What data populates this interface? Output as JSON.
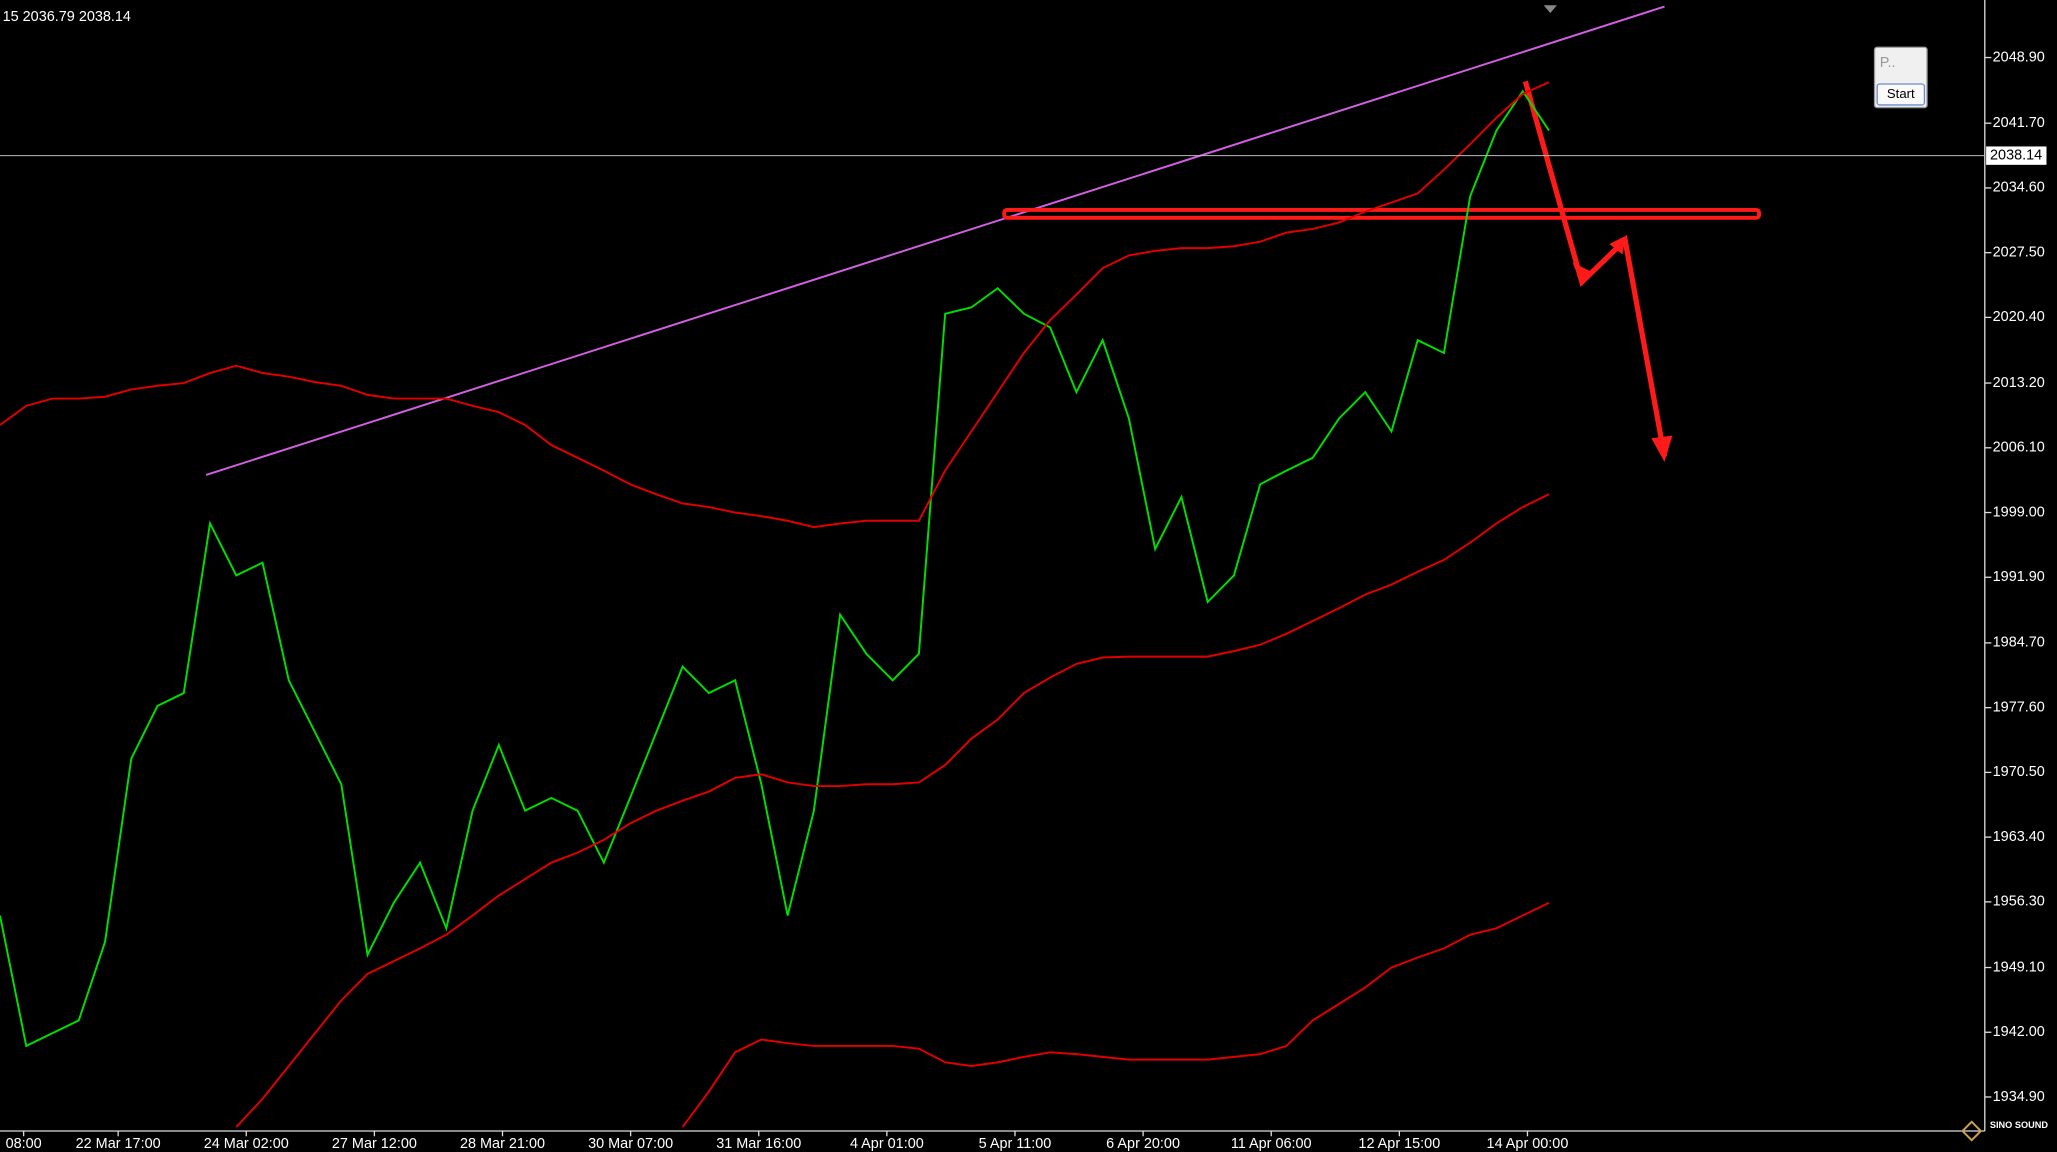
{
  "chart_data": {
    "type": "line",
    "header": "15 2036.79 2038.14",
    "current_price": 2038.14,
    "button_p": "P..",
    "button_start": "Start",
    "logo": "SINO SOUND",
    "x_labels": [
      "08:00",
      "22 Mar 17:00",
      "24 Mar 02:00",
      "27 Mar 12:00",
      "28 Mar 21:00",
      "30 Mar 07:00",
      "31 Mar 16:00",
      "4 Apr 01:00",
      "5 Apr 11:00",
      "6 Apr 20:00",
      "11 Apr 06:00",
      "12 Apr 15:00",
      "14 Apr 00:00"
    ],
    "ylim": [
      1931.17,
      2055.21
    ],
    "yticks": [
      {
        "value": 2048.9,
        "label": "2048.90"
      },
      {
        "value": 2041.7,
        "label": "2041.70"
      },
      {
        "value": 2034.6,
        "label": "2034.60"
      },
      {
        "value": 2027.5,
        "label": "2027.50"
      },
      {
        "value": 2020.4,
        "label": "2020.40"
      },
      {
        "value": 2013.2,
        "label": "2013.20"
      },
      {
        "value": 2006.1,
        "label": "2006.10"
      },
      {
        "value": 1999.0,
        "label": "1999.00"
      },
      {
        "value": 1991.9,
        "label": "1991.90"
      },
      {
        "value": 1984.7,
        "label": "1984.70"
      },
      {
        "value": 1977.6,
        "label": "1977.60"
      },
      {
        "value": 1970.5,
        "label": "1970.50"
      },
      {
        "value": 1963.4,
        "label": "1963.40"
      },
      {
        "value": 1956.3,
        "label": "1956.30"
      },
      {
        "value": 1949.1,
        "label": "1949.10"
      },
      {
        "value": 1942.0,
        "label": "1942.00"
      },
      {
        "value": 1934.9,
        "label": "1934.90"
      }
    ],
    "series": [
      {
        "color": "#00dd00",
        "values": [
          1954.8,
          1940.5,
          1941.9,
          1943.3,
          1951.9,
          1972.0,
          1977.8,
          1979.2,
          1997.8,
          1992.1,
          1993.5,
          1980.6,
          1974.9,
          1969.2,
          1950.5,
          1956.2,
          1960.6,
          1953.4,
          1966.3,
          1973.5,
          1966.3,
          1967.7,
          1966.3,
          1960.6,
          1967.7,
          1974.9,
          1982.1,
          1979.2,
          1980.6,
          1969.2,
          1954.8,
          1966.3,
          1987.8,
          1983.5,
          1980.6,
          1983.5,
          2020.8,
          2021.5,
          2023.6,
          2020.8,
          2019.3,
          2012.2,
          2017.9,
          2009.3,
          1995.0,
          2000.7,
          1989.2,
          1992.1,
          2002.1,
          2003.6,
          2005.0,
          2009.3,
          2012.2,
          2007.9,
          2017.9,
          2016.5,
          2033.7,
          2040.9,
          2045.2,
          2040.9
        ]
      },
      {
        "color": "#e00000",
        "values": [
          2008.6,
          2010.7,
          2011.5,
          2011.5,
          2011.7,
          2012.5,
          2012.9,
          2013.2,
          2014.3,
          2015.1,
          2014.3,
          2013.9,
          2013.3,
          2012.9,
          2011.9,
          2011.5,
          2011.5,
          2011.5,
          2010.7,
          2010.0,
          2008.6,
          2006.4,
          2005.0,
          2003.6,
          2002.1,
          2001.0,
          2000.0,
          1999.6,
          1999.0,
          1998.6,
          1998.1,
          1997.4,
          1997.8,
          1998.1,
          1998.1,
          1998.1,
          2003.6,
          2007.9,
          2012.2,
          2016.5,
          2020.1,
          2022.9,
          2025.8,
          2027.2,
          2027.7,
          2028.0,
          2028.0,
          2028.2,
          2028.7,
          2029.7,
          2030.1,
          2030.8,
          2032.0,
          2033.0,
          2034.0,
          2036.6,
          2039.4,
          2042.3,
          2044.9,
          2046.2
        ]
      },
      {
        "color": "#e00000",
        "values": [
          null,
          null,
          null,
          null,
          null,
          null,
          null,
          null,
          null,
          1931.6,
          1934.7,
          1938.3,
          1941.9,
          1945.5,
          1948.4,
          1949.8,
          1951.2,
          1952.7,
          1954.8,
          1957.0,
          1958.8,
          1960.6,
          1961.7,
          1963.1,
          1964.9,
          1966.3,
          1967.4,
          1968.4,
          1969.9,
          1970.3,
          1969.4,
          1969.0,
          1969.0,
          1969.2,
          1969.2,
          1969.4,
          1971.3,
          1974.2,
          1976.3,
          1979.2,
          1980.9,
          1982.4,
          1983.1,
          1983.2,
          1983.2,
          1983.2,
          1983.2,
          1983.8,
          1984.5,
          1985.7,
          1987.1,
          1988.5,
          1990.0,
          1991.1,
          1992.5,
          1993.8,
          1995.7,
          1997.8,
          1999.6,
          2001.0
        ]
      },
      {
        "color": "#e00000",
        "values": [
          null,
          null,
          null,
          null,
          null,
          null,
          null,
          null,
          null,
          null,
          null,
          null,
          null,
          null,
          null,
          null,
          null,
          null,
          null,
          null,
          null,
          null,
          null,
          null,
          null,
          null,
          1931.6,
          1935.5,
          1939.8,
          1941.2,
          1940.8,
          1940.5,
          1940.5,
          1940.5,
          1940.5,
          1940.2,
          1938.7,
          1938.3,
          1938.7,
          1939.3,
          1939.8,
          1939.6,
          1939.3,
          1939.0,
          1939.0,
          1939.0,
          1939.0,
          1939.3,
          1939.6,
          1940.5,
          1943.3,
          1945.1,
          1946.9,
          1949.1,
          1950.2,
          1951.2,
          1952.7,
          1953.4,
          1954.8,
          1956.2
        ]
      }
    ]
  }
}
